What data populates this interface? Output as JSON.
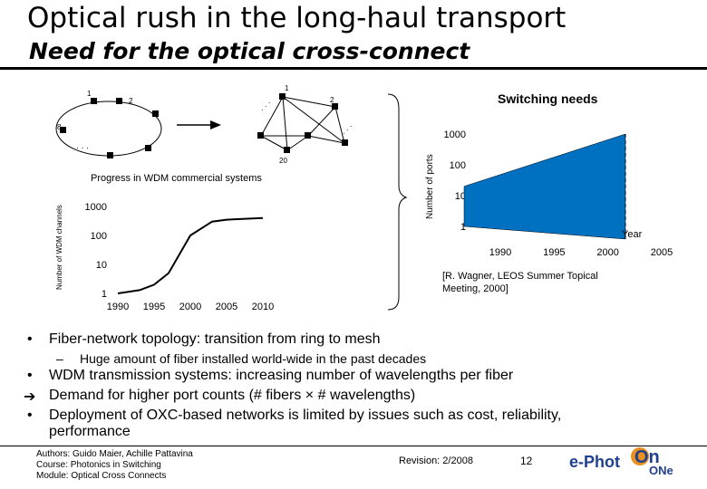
{
  "slide": {
    "title": "Optical rush in the long-haul transport",
    "subtitle": "Need for the optical cross-connect"
  },
  "ring": {
    "labels": [
      "1",
      "2",
      "8"
    ]
  },
  "mesh": {
    "labels": [
      "1",
      "2",
      "20"
    ]
  },
  "wdm_chart": {
    "title": "Progress in WDM commercial systems",
    "ylabel": "Number of WDM channels",
    "yticks": [
      "1000",
      "100",
      "10",
      "1"
    ],
    "xticks": [
      "1990",
      "1995",
      "2000",
      "2005",
      "2010"
    ]
  },
  "switch_chart": {
    "title": "Switching needs",
    "ylabel": "Number of ports",
    "xlabel": "Year",
    "yticks": [
      "1000",
      "100",
      "10",
      "1"
    ],
    "xticks": [
      "1990",
      "1995",
      "2000",
      "2005"
    ],
    "colors": {
      "fill": "#0070c0"
    },
    "reference_line1": "[R. Wagner, LEOS Summer Topical",
    "reference_line2": "Meeting, 2000]"
  },
  "chart_data": [
    {
      "type": "line",
      "title": "Progress in WDM commercial systems",
      "ylabel": "Number of WDM channels",
      "yscale": "log",
      "ylim": [
        1,
        1000
      ],
      "xlim": [
        1990,
        2010
      ],
      "series": [
        {
          "x": [
            1990,
            1993,
            1995,
            1997,
            2000,
            2003,
            2005,
            2010
          ],
          "y": [
            1,
            1.3,
            2,
            5,
            100,
            300,
            350,
            400
          ]
        }
      ]
    },
    {
      "type": "area",
      "title": "Switching needs",
      "xlabel": "Year",
      "ylabel": "Number of ports",
      "yscale": "log",
      "ylim": [
        1,
        1000
      ],
      "xlim": [
        1990,
        2005
      ],
      "series": [
        {
          "x": [
            1990,
            2005
          ],
          "upper": [
            20,
            1000
          ],
          "lower": [
            1,
            1
          ]
        }
      ]
    }
  ],
  "bullets": [
    {
      "mark": "•",
      "text": "Fiber-network topology: transition from ring to mesh"
    },
    {
      "mark": "–",
      "text": "Huge amount of fiber installed world-wide in the past decades"
    },
    {
      "mark": "•",
      "text": "WDM transmission systems: increasing number of wavelengths per fiber"
    },
    {
      "mark": "➔",
      "text": "Demand for higher port counts (# fibers × # wavelengths)"
    },
    {
      "mark": "•",
      "text": "Deployment of OXC-based networks is limited by issues such as cost, reliability,"
    },
    {
      "mark": "",
      "text": "performance"
    }
  ],
  "footer": {
    "authors": "Authors: Guido Maier, Achille Pattavina",
    "course": "Course: Photonics in Switching",
    "module": "Module: Optical Cross Connects",
    "revision": "Revision: 2/2008",
    "page": "12",
    "logo_left": "e-Phot",
    "logo_on": "On",
    "logo_ne": "ONe"
  }
}
